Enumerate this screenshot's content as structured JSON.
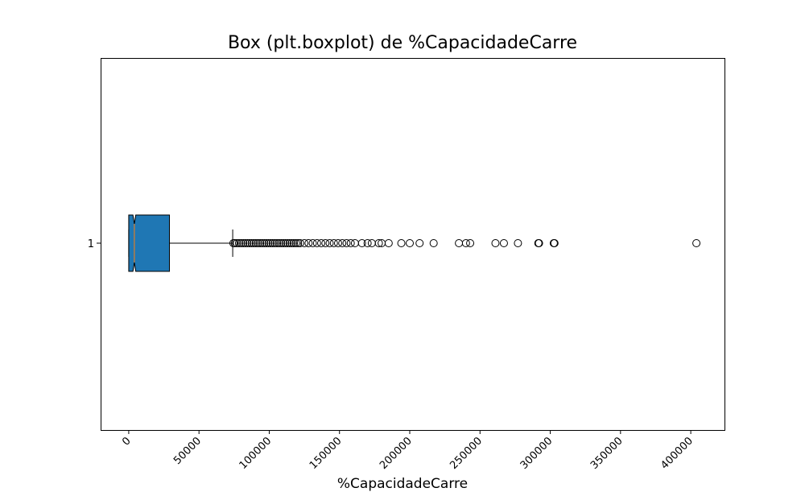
{
  "chart_data": {
    "type": "boxplot",
    "title": "Box (plt.boxplot) de %CapacidadeCarre",
    "xlabel": "%CapacidadeCarre",
    "ylabel": "",
    "orientation": "horizontal",
    "notched": true,
    "xlim": [
      -20000,
      424000
    ],
    "xticks": [
      0,
      50000,
      100000,
      150000,
      200000,
      250000,
      300000,
      350000,
      400000
    ],
    "xtick_labels": [
      "0",
      "50000",
      "100000",
      "150000",
      "200000",
      "250000",
      "300000",
      "350000",
      "400000"
    ],
    "xtick_rotation": 45,
    "ytick_labels": [
      "1"
    ],
    "box": {
      "whisker_low": 0,
      "q1": 0,
      "median": 4000,
      "q3": 29000,
      "whisker_high": 74000,
      "notch_low": 3000,
      "notch_high": 5000,
      "box_color": "#1f77b4",
      "median_color": "#ff7f0e"
    },
    "outliers": [
      74500,
      75500,
      77000,
      78500,
      80000,
      81500,
      83000,
      84500,
      86000,
      87500,
      89000,
      90500,
      92000,
      93500,
      95000,
      96500,
      98000,
      99500,
      101000,
      102500,
      104000,
      105500,
      107000,
      108500,
      110000,
      111500,
      113000,
      114500,
      116000,
      117500,
      119000,
      120500,
      122000,
      125000,
      128000,
      131000,
      134000,
      137000,
      140000,
      143000,
      146000,
      149000,
      152000,
      155000,
      158000,
      161000,
      166000,
      170000,
      173000,
      178000,
      180000,
      185000,
      194000,
      200000,
      207000,
      217000,
      235000,
      240000,
      243000,
      261000,
      267000,
      277000,
      291500,
      292000,
      302500,
      303000,
      404000
    ]
  }
}
